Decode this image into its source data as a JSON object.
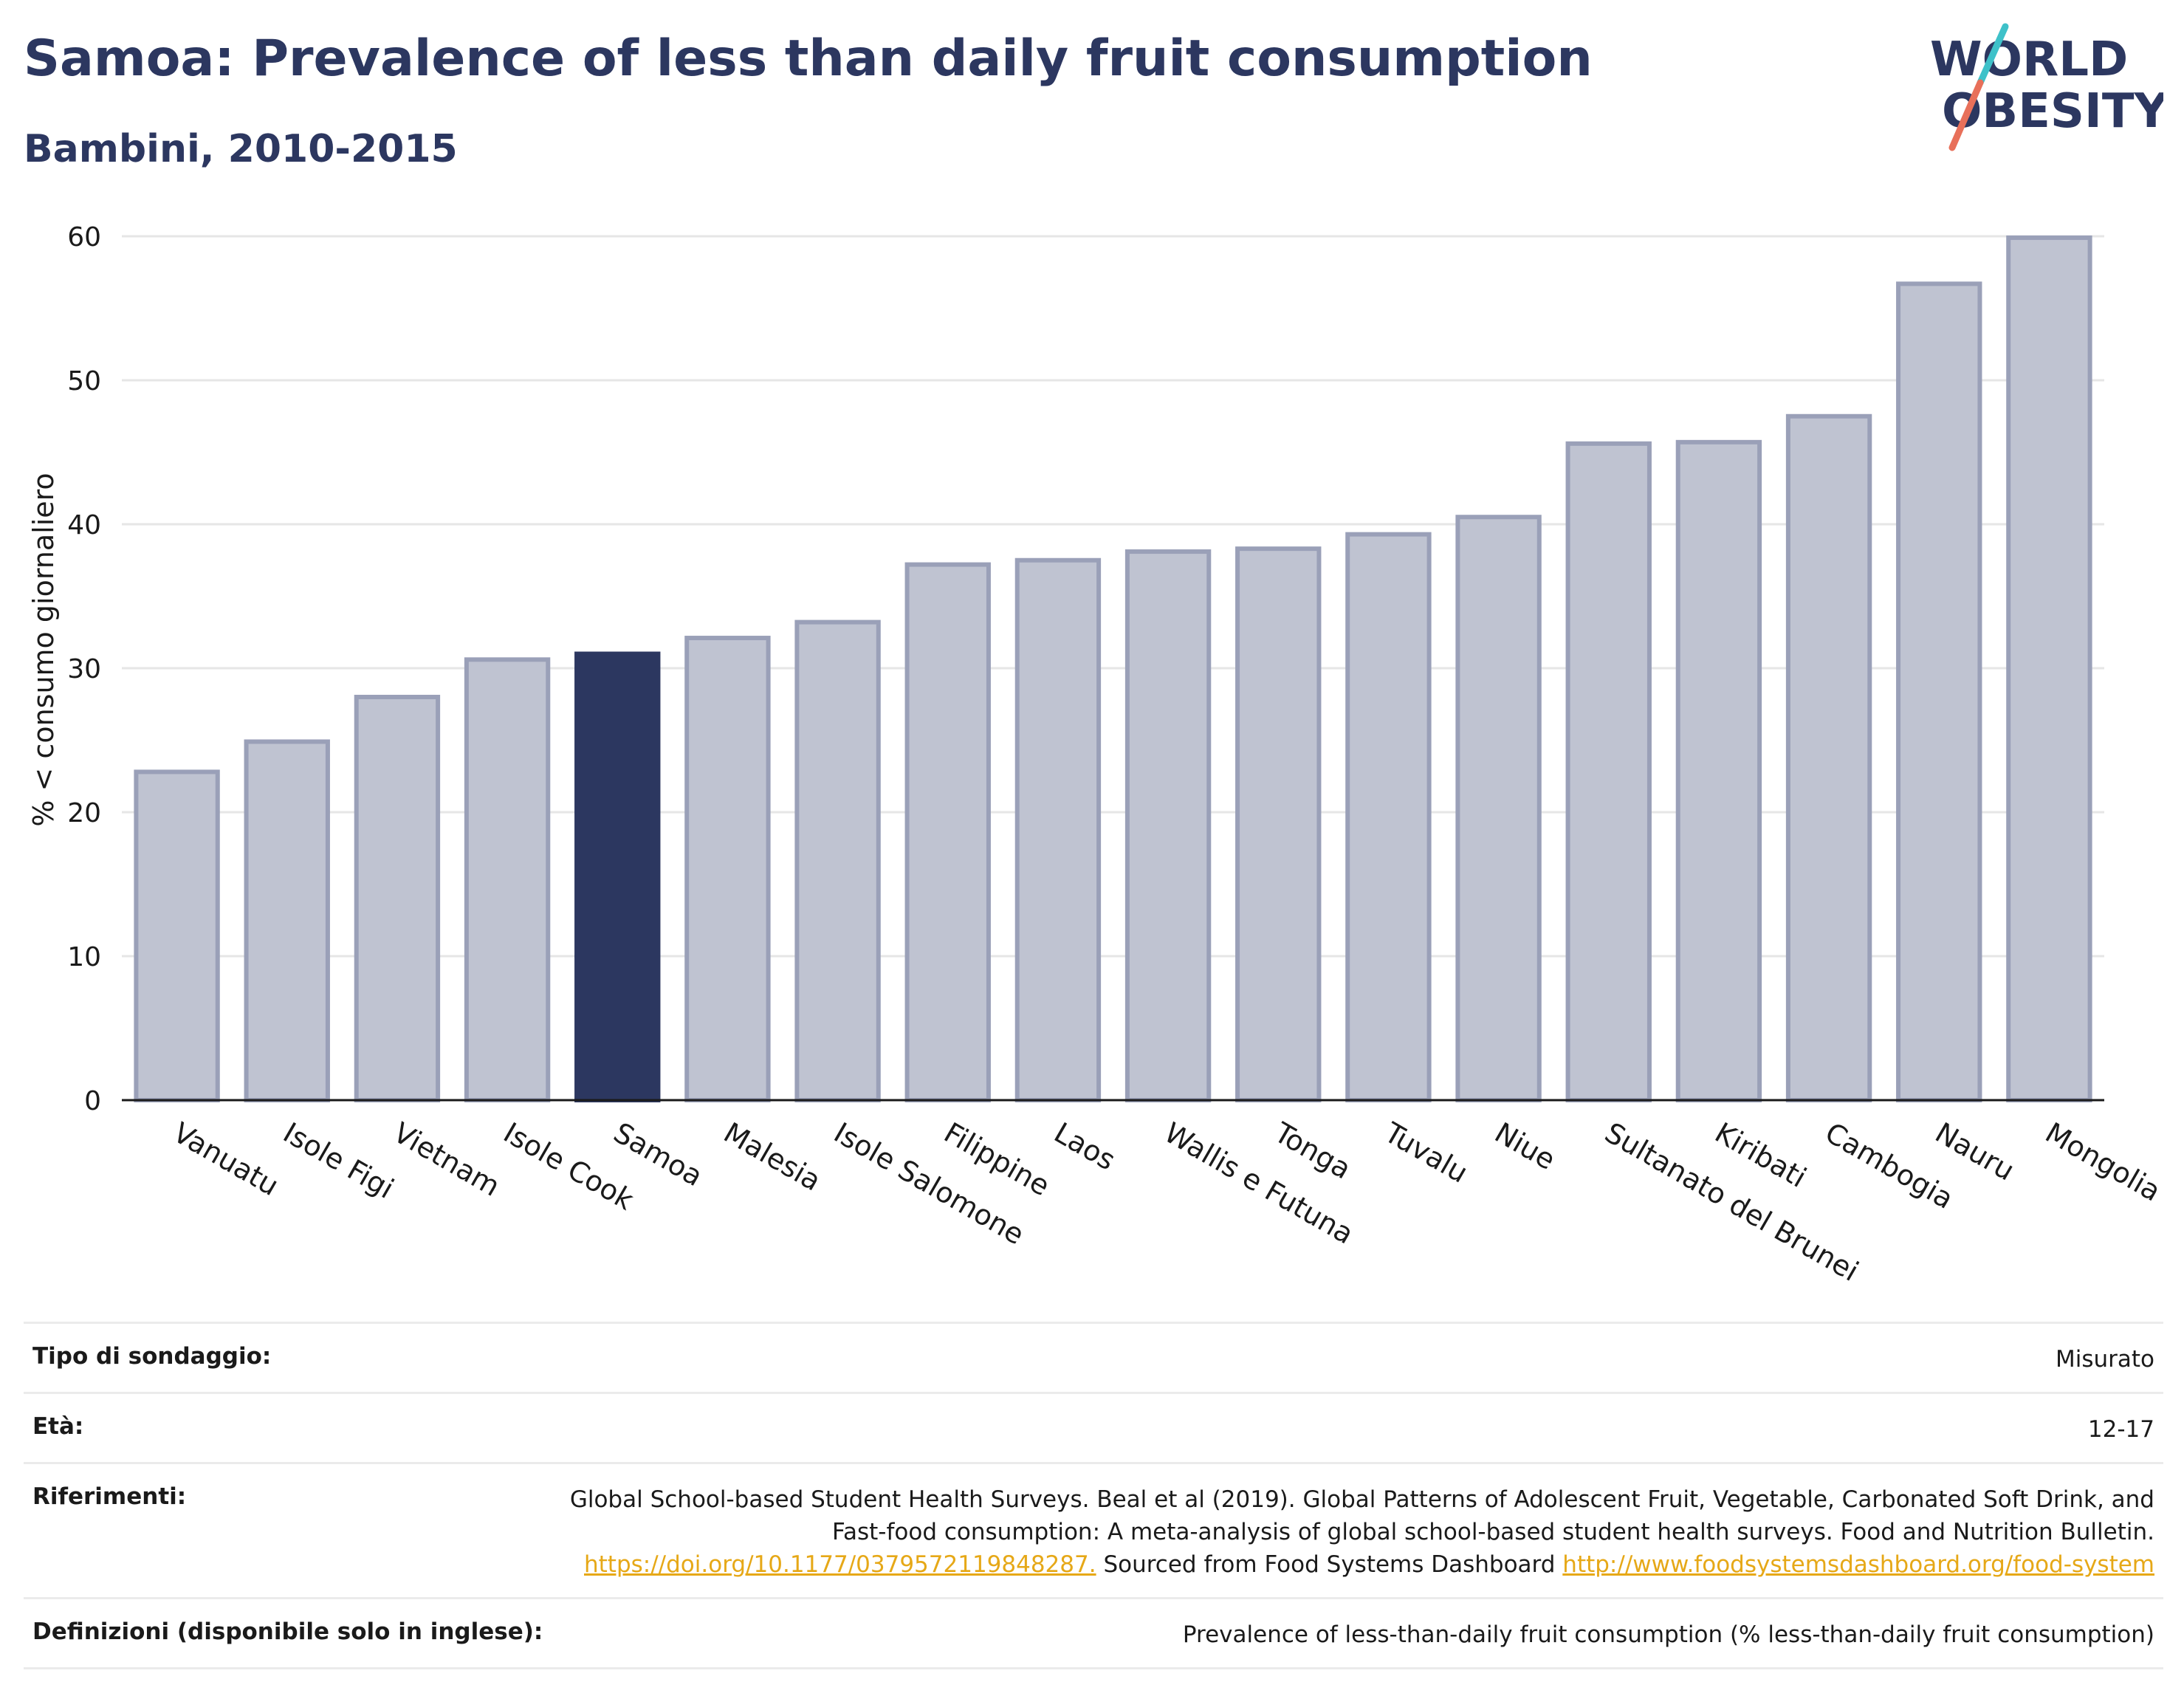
{
  "header": {
    "title": "Samoa: Prevalence of less than daily fruit consumption",
    "subtitle": "Bambini, 2010-2015"
  },
  "logo": {
    "line1": "WORLD",
    "line2": "OBESITY",
    "slash_colors": [
      "#3ec1c9",
      "#e8705a"
    ],
    "text_color": "#2c3760"
  },
  "chart_data": {
    "type": "bar",
    "categories": [
      "Vanuatu",
      "Isole Figi",
      "Vietnam",
      "Isole Cook",
      "Samoa",
      "Malesia",
      "Isole Salomone",
      "Filippine",
      "Laos",
      "Wallis e Futuna",
      "Tonga",
      "Tuvalu",
      "Niue",
      "Sultanato del Brunei",
      "Kiribati",
      "Cambogia",
      "Nauru",
      "Mongolia"
    ],
    "values": [
      22.8,
      24.9,
      28.0,
      30.6,
      31.0,
      32.1,
      33.2,
      37.2,
      37.5,
      38.1,
      38.3,
      39.3,
      40.5,
      45.6,
      45.7,
      47.5,
      56.7,
      59.9
    ],
    "highlight": "Samoa",
    "ylabel": "% < consumo giornaliero",
    "xlabel": "",
    "ylim": [
      0,
      60
    ],
    "yticks": [
      0,
      10,
      20,
      30,
      40,
      50,
      60
    ],
    "grid": true,
    "colors": {
      "bar": "#bfc3d1",
      "bar_border": "#9aa0b8",
      "highlight": "#2c3760"
    }
  },
  "meta": {
    "survey_label": "Tipo di sondaggio:",
    "survey_value": "Misurato",
    "age_label": "Età:",
    "age_value": "12-17",
    "refs_label": "Riferimenti:",
    "refs_text1": "Global School-based Student Health Surveys. Beal et al (2019). Global Patterns of Adolescent Fruit, Vegetable, Carbonated Soft Drink, and Fast-food consumption: A meta-analysis of global school-based student health surveys. Food and Nutrition Bulletin.",
    "refs_link1": "https://doi.org/10.1177/0379572119848287.",
    "refs_text2": "Sourced from Food Systems Dashboard",
    "refs_link2": "http://www.foodsystemsdashboard.org/food-system",
    "defs_label": "Definizioni (disponibile solo in inglese):",
    "defs_value": "Prevalence of less-than-daily fruit consumption (% less-than-daily fruit consumption)"
  }
}
